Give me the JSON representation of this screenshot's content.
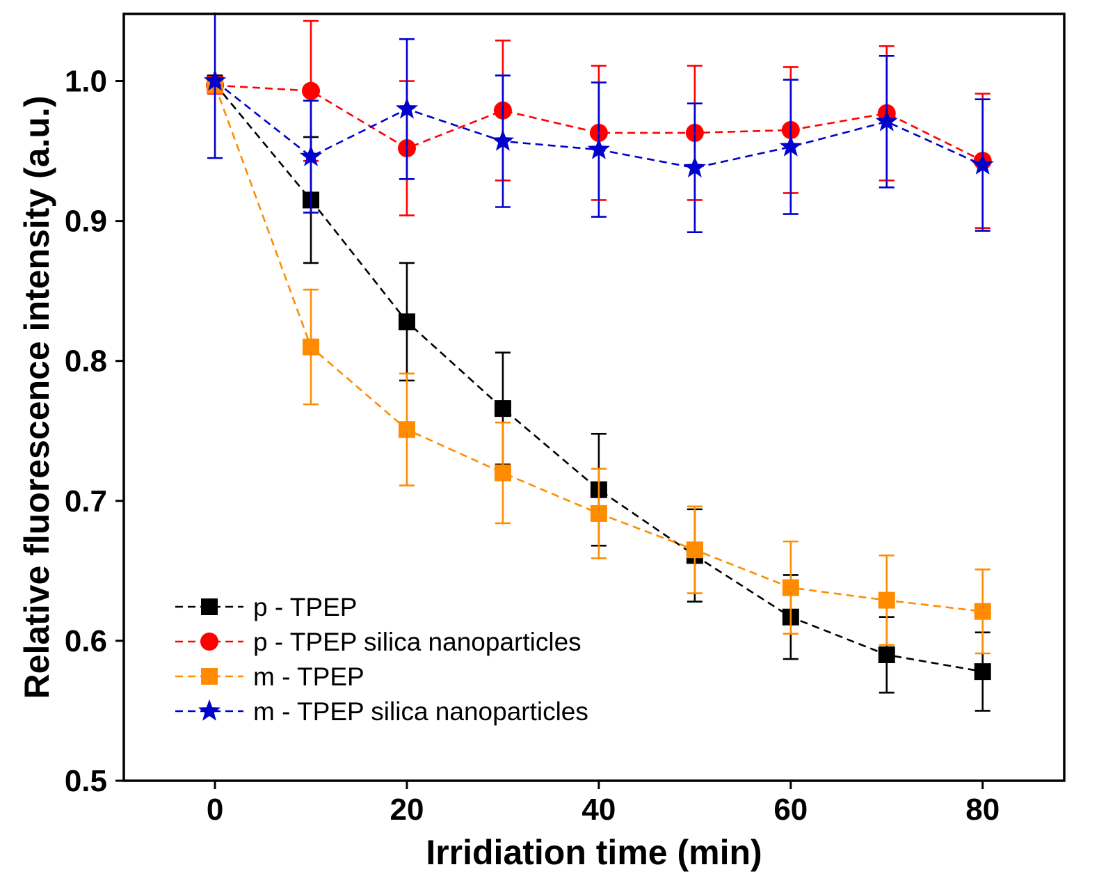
{
  "chart_data": {
    "type": "line",
    "title": "",
    "xlabel": "Irridiation time (min)",
    "ylabel": "Relative fluorescence intensity (a.u.)",
    "xlim": [
      -9.5,
      88.5
    ],
    "ylim": [
      0.5,
      1.048
    ],
    "grid": false,
    "legend_position": "inside-lower-left",
    "error_bars": true,
    "x": [
      0,
      10,
      20,
      30,
      40,
      50,
      60,
      70,
      80
    ],
    "xticks": [
      {
        "v": 0,
        "label": "0"
      },
      {
        "v": 20,
        "label": "20"
      },
      {
        "v": 40,
        "label": "40"
      },
      {
        "v": 60,
        "label": "60"
      },
      {
        "v": 80,
        "label": "80"
      }
    ],
    "yticks": [
      {
        "v": 0.5,
        "label": "0.5"
      },
      {
        "v": 0.6,
        "label": "0.6"
      },
      {
        "v": 0.7,
        "label": "0.7"
      },
      {
        "v": 0.8,
        "label": "0.8"
      },
      {
        "v": 0.9,
        "label": "0.9"
      },
      {
        "v": 1.0,
        "label": "1.0"
      }
    ],
    "series": [
      {
        "name": "p - TPEP",
        "color": "#000000",
        "marker": "square",
        "values": [
          0.998,
          0.915,
          0.828,
          0.766,
          0.708,
          0.661,
          0.617,
          0.59,
          0.578
        ],
        "errors": [
          0.006,
          0.045,
          0.042,
          0.04,
          0.04,
          0.033,
          0.03,
          0.027,
          0.028
        ]
      },
      {
        "name": "p - TPEP silica nanoparticles",
        "color": "#ff0000",
        "marker": "circle",
        "values": [
          0.997,
          0.993,
          0.952,
          0.979,
          0.963,
          0.963,
          0.965,
          0.977,
          0.943
        ],
        "errors": [
          0.006,
          0.05,
          0.048,
          0.05,
          0.048,
          0.048,
          0.045,
          0.048,
          0.048
        ]
      },
      {
        "name": "m - TPEP",
        "color": "#ff8c00",
        "marker": "square",
        "values": [
          0.997,
          0.81,
          0.751,
          0.72,
          0.691,
          0.665,
          0.638,
          0.629,
          0.621
        ],
        "errors": [
          0.005,
          0.041,
          0.04,
          0.036,
          0.032,
          0.031,
          0.033,
          0.032,
          0.03
        ]
      },
      {
        "name": "m - TPEP silica nanoparticles",
        "color": "#0000cd",
        "marker": "star",
        "values": [
          1.0,
          0.946,
          0.98,
          0.957,
          0.951,
          0.938,
          0.953,
          0.971,
          0.94
        ],
        "errors": [
          0.055,
          0.04,
          0.05,
          0.047,
          0.048,
          0.046,
          0.048,
          0.047,
          0.047
        ]
      }
    ]
  }
}
